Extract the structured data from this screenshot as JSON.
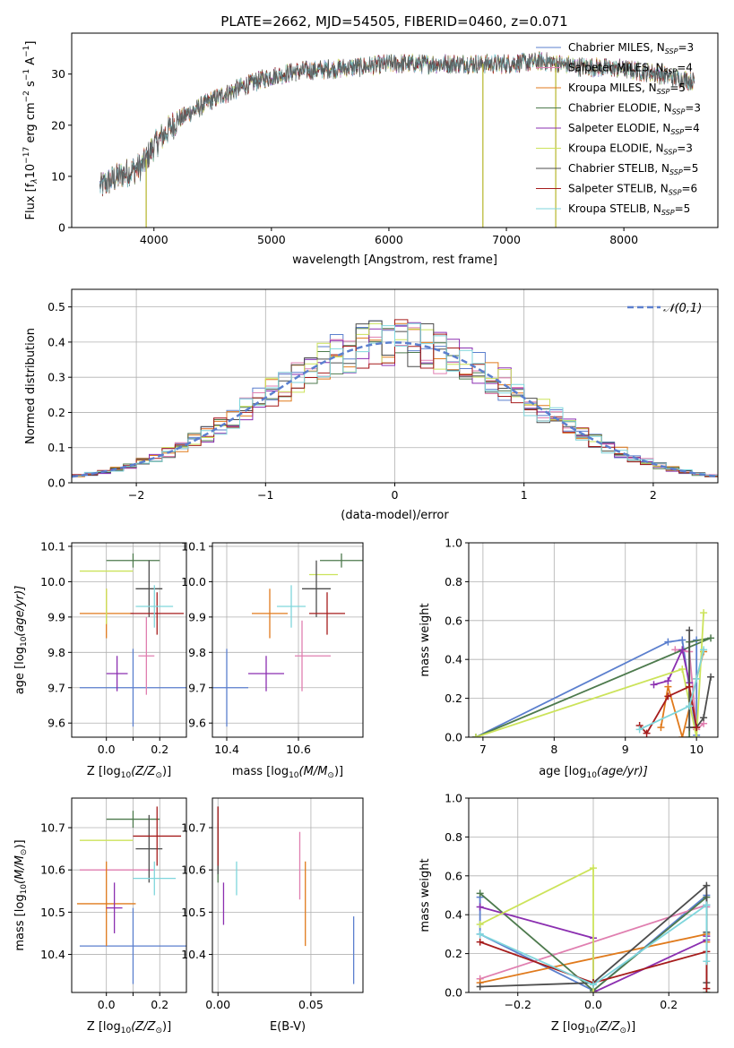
{
  "figure_title": "PLATE=2662, MJD=54505, FIBERID=0460, z=0.071",
  "chart_data": [
    {
      "id": "spectrum",
      "type": "line",
      "xlabel": "wavelength [Angstrom, rest frame]",
      "ylabel_main": "Flux [f",
      "ylabel_sub": "λ",
      "ylabel_rest": "10",
      "ylabel_sup": "−17",
      "ylabel_tail": " erg cm",
      "ylabel_sup2": "−2",
      "ylabel_tail2": " s",
      "ylabel_sup3": "−1",
      "ylabel_tail3": " A",
      "ylabel_sup4": "−1",
      "ylabel_end": "]",
      "xlim": [
        3300,
        8800
      ],
      "ylim": [
        0,
        38
      ],
      "xticks": [
        4000,
        5000,
        6000,
        7000,
        8000
      ],
      "yticks": [
        0,
        10,
        20,
        30
      ],
      "continuum_x": [
        3540,
        3700,
        3900,
        4000,
        4200,
        4500,
        4800,
        5000,
        5200,
        5500,
        5800,
        6000,
        6300,
        6600,
        7000,
        7300,
        7600,
        8000,
        8300,
        8600
      ],
      "continuum_y": [
        8,
        10,
        12,
        16,
        21,
        25,
        28,
        29.5,
        30.5,
        31,
        31.5,
        32,
        32,
        32,
        32,
        32.5,
        31.5,
        31,
        30,
        28.5
      ],
      "spectral_lines": [
        {
          "x": 3934,
          "y": 0
        },
        {
          "x": 6800,
          "y": 0
        },
        {
          "x": 7420,
          "y": 0
        }
      ],
      "legend": [
        {
          "label": "Chabrier MILES, N",
          "sub": "SSP",
          "suffix": "=3",
          "color": "#5b7fce"
        },
        {
          "label": "Salpeter MILES, N",
          "sub": "SSP",
          "suffix": "=4",
          "color": "#e07fb0"
        },
        {
          "label": "Kroupa MILES, N",
          "sub": "SSP",
          "suffix": "=5",
          "color": "#e07a1c"
        },
        {
          "label": "Chabrier ELODIE, N",
          "sub": "SSP",
          "suffix": "=3",
          "color": "#4d7a4d"
        },
        {
          "label": "Salpeter ELODIE, N",
          "sub": "SSP",
          "suffix": "=4",
          "color": "#8b2fb0"
        },
        {
          "label": "Kroupa ELODIE, N",
          "sub": "SSP",
          "suffix": "=3",
          "color": "#cce35a"
        },
        {
          "label": "Chabrier STELIB, N",
          "sub": "SSP",
          "suffix": "=5",
          "color": "#4d4d4d"
        },
        {
          "label": "Salpeter STELIB, N",
          "sub": "SSP",
          "suffix": "=6",
          "color": "#a61c1c"
        },
        {
          "label": "Kroupa STELIB, N",
          "sub": "SSP",
          "suffix": "=5",
          "color": "#7fd6dc"
        }
      ]
    },
    {
      "id": "residuals",
      "type": "histogram",
      "xlabel": "(data-model)/error",
      "ylabel": "Normed distribution",
      "xlim": [
        -2.5,
        2.5
      ],
      "ylim": [
        0,
        0.55
      ],
      "xticks": [
        -2,
        -1,
        0,
        1,
        2
      ],
      "yticks": [
        0.0,
        0.1,
        0.2,
        0.3,
        0.4,
        0.5
      ],
      "bin_width": 0.1,
      "gaussian_legend": "𝒩(0,1)",
      "gaussian_color": "#5b7fce"
    },
    {
      "id": "age_vs_Z",
      "type": "errorbar",
      "xlabel": "Z [log",
      "xlabel_sub": "10",
      "xlabel_tail": "(Z/Z",
      "xlabel_sub2": "⊙",
      "xlabel_end": ")]",
      "ylabel": "age  [log",
      "ylabel_sub": "10",
      "ylabel_tail": "(age/yr)]",
      "xlim": [
        -0.13,
        0.3
      ],
      "ylim": [
        9.56,
        10.11
      ],
      "xticks": [
        0.0,
        0.1,
        0.2
      ],
      "xtick_labels": [
        "0.0",
        "",
        "0.2"
      ],
      "yticks": [
        9.6,
        9.7,
        9.8,
        9.9,
        10.0,
        10.1
      ],
      "points": [
        {
          "x": 0.1,
          "y": 9.7,
          "xerr": 0.2,
          "yerr": 0.11,
          "color": "#5b7fce"
        },
        {
          "x": 0.15,
          "y": 9.79,
          "xerr": 0.0,
          "yerr": 0.11,
          "color": "#e07fb0"
        },
        {
          "x": 0.15,
          "y": 9.79,
          "xerr": 0.03,
          "yerr": 0.0,
          "color": "#e07fb0"
        },
        {
          "x": 0.0,
          "y": 9.91,
          "xerr": 0.1,
          "yerr": 0.07,
          "color": "#e07a1c"
        },
        {
          "x": 0.1,
          "y": 10.06,
          "xerr": 0.1,
          "yerr": 0.02,
          "color": "#4d7a4d"
        },
        {
          "x": 0.04,
          "y": 9.74,
          "xerr": 0.04,
          "yerr": 0.05,
          "color": "#8b2fb0"
        },
        {
          "x": 0.0,
          "y": 10.03,
          "xerr": 0.1,
          "yerr": 0.0,
          "color": "#cce35a"
        },
        {
          "x": 0.0,
          "y": 9.93,
          "xerr": 0.0,
          "yerr": 0.05,
          "color": "#cce35a"
        },
        {
          "x": 0.16,
          "y": 9.98,
          "xerr": 0.05,
          "yerr": 0.08,
          "color": "#4d4d4d"
        },
        {
          "x": 0.19,
          "y": 9.91,
          "xerr": 0.1,
          "yerr": 0.06,
          "color": "#a61c1c"
        },
        {
          "x": 0.18,
          "y": 9.93,
          "xerr": 0.07,
          "yerr": 0.06,
          "color": "#7fd6dc"
        }
      ]
    },
    {
      "id": "age_vs_mass",
      "type": "errorbar",
      "xlabel": "mass [log",
      "xlabel_sub": "10",
      "xlabel_tail": "(M/M",
      "xlabel_sub2": "⊙",
      "xlabel_end": ")]",
      "xlim": [
        10.36,
        10.78
      ],
      "ylim": [
        9.56,
        10.11
      ],
      "xticks": [
        10.4,
        10.6
      ],
      "yticks": [
        9.6,
        9.7,
        9.8,
        9.9,
        10.0,
        10.1
      ],
      "points": [
        {
          "x": 10.4,
          "y": 9.7,
          "xerr": 0.06,
          "yerr": 0.11,
          "color": "#5b7fce"
        },
        {
          "x": 10.64,
          "y": 9.79,
          "xerr": 0.05,
          "yerr": 0.0,
          "color": "#e07fb0"
        },
        {
          "x": 10.61,
          "y": 9.79,
          "xerr": 0.0,
          "yerr": 0.1,
          "color": "#e07fb0"
        },
        {
          "x": 10.52,
          "y": 9.91,
          "xerr": 0.0,
          "yerr": 0.07,
          "color": "#e07a1c"
        },
        {
          "x": 10.52,
          "y": 9.91,
          "xerr": 0.05,
          "yerr": 0.0,
          "color": "#e07a1c"
        },
        {
          "x": 10.72,
          "y": 10.06,
          "xerr": 0.06,
          "yerr": 0.02,
          "color": "#4d7a4d"
        },
        {
          "x": 10.51,
          "y": 9.74,
          "xerr": 0.05,
          "yerr": 0.05,
          "color": "#8b2fb0"
        },
        {
          "x": 10.67,
          "y": 10.02,
          "xerr": 0.04,
          "yerr": 0.0,
          "color": "#cce35a"
        },
        {
          "x": 10.65,
          "y": 9.98,
          "xerr": 0.04,
          "yerr": 0.08,
          "color": "#4d4d4d"
        },
        {
          "x": 10.68,
          "y": 9.91,
          "xerr": 0.05,
          "yerr": 0.06,
          "color": "#a61c1c"
        },
        {
          "x": 10.58,
          "y": 9.93,
          "xerr": 0.04,
          "yerr": 0.06,
          "color": "#7fd6dc"
        }
      ]
    },
    {
      "id": "weight_vs_age",
      "type": "line",
      "xlabel": "age  [log",
      "xlabel_sub": "10",
      "xlabel_tail": "(age/yr)]",
      "ylabel": "mass weight",
      "xlim": [
        6.8,
        10.3
      ],
      "ylim": [
        0,
        1
      ],
      "xticks": [
        7,
        8,
        9,
        10
      ],
      "yticks": [
        0.0,
        0.2,
        0.4,
        0.6,
        0.8,
        1.0
      ],
      "series": [
        {
          "color": "#5b7fce",
          "x": [
            6.9,
            9.6,
            9.8,
            10.0,
            10.0
          ],
          "y": [
            0.0,
            0.49,
            0.5,
            0.01,
            0.5
          ]
        },
        {
          "color": "#e07fb0",
          "x": [
            9.7,
            9.9,
            10.0,
            10.1
          ],
          "y": [
            0.45,
            0.44,
            0.04,
            0.07
          ]
        },
        {
          "color": "#e07a1c",
          "x": [
            9.5,
            9.6,
            9.8,
            10.0,
            10.1
          ],
          "y": [
            0.05,
            0.26,
            0.0,
            0.3,
            0.44
          ]
        },
        {
          "color": "#4d7a4d",
          "x": [
            6.9,
            10.2,
            9.9,
            9.9
          ],
          "y": [
            0.0,
            0.51,
            0.49,
            0.0
          ]
        },
        {
          "color": "#8b2fb0",
          "x": [
            9.4,
            9.6,
            9.8,
            9.9
          ],
          "y": [
            0.27,
            0.29,
            0.45,
            0.28
          ]
        },
        {
          "color": "#cce35a",
          "x": [
            6.9,
            9.8,
            10.0,
            10.1
          ],
          "y": [
            0.0,
            0.35,
            0.0,
            0.64
          ]
        },
        {
          "color": "#4d4d4d",
          "x": [
            9.9,
            9.9,
            10.0,
            10.1,
            10.2
          ],
          "y": [
            0.55,
            0.05,
            0.05,
            0.1,
            0.31
          ]
        },
        {
          "color": "#a61c1c",
          "x": [
            9.2,
            9.3,
            9.6,
            9.9,
            10.0
          ],
          "y": [
            0.06,
            0.02,
            0.21,
            0.26,
            0.05
          ]
        },
        {
          "color": "#7fd6dc",
          "x": [
            9.2,
            9.9,
            10.0,
            10.1
          ],
          "y": [
            0.04,
            0.16,
            0.3,
            0.45
          ]
        }
      ]
    },
    {
      "id": "mass_vs_Z",
      "type": "errorbar",
      "xlabel": "Z [log",
      "xlabel_sub": "10",
      "xlabel_tail": "(Z/Z",
      "xlabel_sub2": "⊙",
      "xlabel_end": ")]",
      "ylabel": "mass [log",
      "ylabel_sub": "10",
      "ylabel_tail": "(M/M",
      "ylabel_sub2": "⊙",
      "ylabel_end": ")]",
      "xlim": [
        -0.13,
        0.3
      ],
      "ylim": [
        10.31,
        10.77
      ],
      "xticks": [
        0.0,
        0.1,
        0.2
      ],
      "xtick_labels": [
        "0.0",
        "",
        "0.2"
      ],
      "yticks": [
        10.4,
        10.5,
        10.6,
        10.7
      ],
      "points": [
        {
          "x": 0.1,
          "y": 10.42,
          "xerr": 0.2,
          "yerr": 0.09,
          "color": "#5b7fce"
        },
        {
          "x": 0.04,
          "y": 10.6,
          "xerr": 0.14,
          "yerr": 0.0,
          "color": "#e07fb0"
        },
        {
          "x": 0.0,
          "y": 10.52,
          "xerr": 0.11,
          "yerr": 0.1,
          "color": "#e07a1c"
        },
        {
          "x": 0.1,
          "y": 10.72,
          "xerr": 0.1,
          "yerr": 0.02,
          "color": "#4d7a4d"
        },
        {
          "x": 0.03,
          "y": 10.51,
          "xerr": 0.03,
          "yerr": 0.06,
          "color": "#8b2fb0"
        },
        {
          "x": 0.0,
          "y": 10.67,
          "xerr": 0.1,
          "yerr": 0.0,
          "color": "#cce35a"
        },
        {
          "x": 0.16,
          "y": 10.65,
          "xerr": 0.05,
          "yerr": 0.08,
          "color": "#4d4d4d"
        },
        {
          "x": 0.19,
          "y": 10.68,
          "xerr": 0.09,
          "yerr": 0.07,
          "color": "#a61c1c"
        },
        {
          "x": 0.18,
          "y": 10.58,
          "xerr": 0.08,
          "yerr": 0.04,
          "color": "#7fd6dc"
        }
      ]
    },
    {
      "id": "mass_vs_ebv",
      "type": "errorbar",
      "xlabel": "E(B-V)",
      "xlim": [
        -0.003,
        0.078
      ],
      "ylim": [
        10.31,
        10.77
      ],
      "xticks": [
        0.0,
        0.05
      ],
      "xtick_labels": [
        "0.00",
        "0.05"
      ],
      "yticks": [
        10.4,
        10.5,
        10.6,
        10.7
      ],
      "points": [
        {
          "x": 0.073,
          "y": 10.41,
          "xerr": 0.0,
          "yerr": 0.08,
          "color": "#5b7fce"
        },
        {
          "x": 0.044,
          "y": 10.61,
          "xerr": 0.0,
          "yerr": 0.08,
          "color": "#e07fb0"
        },
        {
          "x": 0.047,
          "y": 10.52,
          "xerr": 0.0,
          "yerr": 0.1,
          "color": "#e07a1c"
        },
        {
          "x": 0.0,
          "y": 10.64,
          "xerr": 0.0,
          "yerr": 0.07,
          "color": "#4d7a4d"
        },
        {
          "x": 0.003,
          "y": 10.52,
          "xerr": 0.0,
          "yerr": 0.05,
          "color": "#8b2fb0"
        },
        {
          "x": 0.0,
          "y": 10.68,
          "xerr": 0.0,
          "yerr": 0.0,
          "color": "#cce35a"
        },
        {
          "x": 0.0,
          "y": 10.67,
          "xerr": 0.0,
          "yerr": 0.08,
          "color": "#4d4d4d"
        },
        {
          "x": 0.0,
          "y": 10.68,
          "xerr": 0.0,
          "yerr": 0.07,
          "color": "#a61c1c"
        },
        {
          "x": 0.01,
          "y": 10.58,
          "xerr": 0.0,
          "yerr": 0.04,
          "color": "#7fd6dc"
        }
      ]
    },
    {
      "id": "weight_vs_Z",
      "type": "line",
      "xlabel": "Z [log",
      "xlabel_sub": "10",
      "xlabel_tail": "(Z/Z",
      "xlabel_sub2": "⊙",
      "xlabel_end": ")]",
      "ylabel": "mass weight",
      "xlim": [
        -0.33,
        0.33
      ],
      "ylim": [
        0,
        1
      ],
      "xticks": [
        -0.2,
        0.0,
        0.2
      ],
      "xtick_labels": [
        "−0.2",
        "0.0",
        "0.2"
      ],
      "yticks": [
        0.0,
        0.2,
        0.4,
        0.6,
        0.8,
        1.0
      ],
      "series": [
        {
          "color": "#5b7fce",
          "x": [
            -0.3,
            -0.3,
            0.0,
            0.3,
            0.3
          ],
          "y": [
            0.49,
            0.3,
            0.01,
            0.5,
            0.45
          ]
        },
        {
          "color": "#e07fb0",
          "x": [
            -0.3,
            0.3,
            0.3
          ],
          "y": [
            0.07,
            0.45,
            0.44
          ]
        },
        {
          "color": "#e07a1c",
          "x": [
            -0.3,
            0.3,
            0.3
          ],
          "y": [
            0.05,
            0.3,
            0.26
          ]
        },
        {
          "color": "#4d7a4d",
          "x": [
            -0.3,
            0.0,
            0.3,
            0.3
          ],
          "y": [
            0.51,
            0.01,
            0.49,
            0.0
          ]
        },
        {
          "color": "#8b2fb0",
          "x": [
            -0.3,
            0.0,
            0.0,
            0.3,
            0.3
          ],
          "y": [
            0.44,
            0.28,
            0.0,
            0.27,
            0.29
          ]
        },
        {
          "color": "#cce35a",
          "x": [
            -0.3,
            0.0,
            0.0
          ],
          "y": [
            0.35,
            0.64,
            0.0
          ]
        },
        {
          "color": "#4d4d4d",
          "x": [
            -0.3,
            0.0,
            0.3,
            0.3,
            0.3
          ],
          "y": [
            0.03,
            0.05,
            0.55,
            0.05,
            0.31
          ]
        },
        {
          "color": "#a61c1c",
          "x": [
            -0.3,
            0.0,
            0.3,
            0.3
          ],
          "y": [
            0.26,
            0.05,
            0.21,
            0.02
          ]
        },
        {
          "color": "#7fd6dc",
          "x": [
            -0.3,
            0.0,
            0.3,
            0.3
          ],
          "y": [
            0.3,
            0.04,
            0.45,
            0.16
          ]
        }
      ]
    }
  ]
}
